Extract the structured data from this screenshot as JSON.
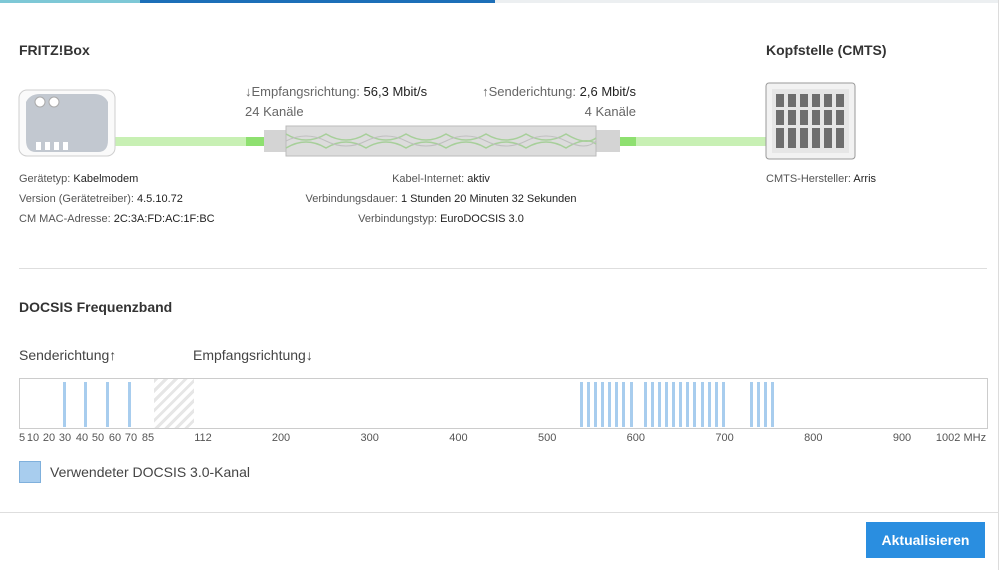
{
  "header": {
    "fritzbox_title": "FRITZ!Box",
    "cmts_title": "Kopfstelle (CMTS)"
  },
  "downstream": {
    "label": "↓Empfangsrichtung:",
    "rate": "56,3 Mbit/s",
    "channels": "24 Kanäle"
  },
  "upstream": {
    "label": "↑Senderichtung:",
    "rate": "2,6 Mbit/s",
    "channels": "4 Kanäle"
  },
  "device": {
    "type_label": "Gerätetyp:",
    "type_value": "Kabelmodem",
    "version_label": "Version (Gerätetreiber):",
    "version_value": "4.5.10.72",
    "mac_label": "CM MAC-Adresse:",
    "mac_value": "2C:3A:FD:AC:1F:BC"
  },
  "connection": {
    "internet_label": "Kabel-Internet:",
    "internet_value": "aktiv",
    "duration_label": "Verbindungsdauer:",
    "duration_value": "1 Stunden 20 Minuten 32 Sekunden",
    "type_label": "Verbindungstyp:",
    "type_value": "EuroDOCSIS 3.0"
  },
  "cmts": {
    "vendor_label": "CMTS-Hersteller:",
    "vendor_value": "Arris"
  },
  "docsis": {
    "title": "DOCSIS Frequenzband",
    "send_label": "Senderichtung↑",
    "receive_label": "Empfangsrichtung↓",
    "upstream_ticks": [
      "5",
      "10",
      "20",
      "30",
      "40",
      "50",
      "60",
      "70",
      "85"
    ],
    "downstream_ticks": [
      "112",
      "200",
      "300",
      "400",
      "500",
      "600",
      "700",
      "800",
      "900",
      "1002 MHz"
    ],
    "upstream_channels_mhz": [
      31,
      44,
      57,
      70
    ],
    "downstream_channels_mhz": [
      538,
      546,
      554,
      562,
      570,
      578,
      586,
      594,
      610,
      618,
      626,
      634,
      642,
      650,
      658,
      666,
      674,
      682,
      690,
      698,
      730,
      738,
      746,
      754
    ],
    "legend": "Verwendeter DOCSIS 3.0-Kanal",
    "channel_color": "#a8cdee"
  },
  "actions": {
    "refresh": "Aktualisieren"
  },
  "colors": {
    "accent": "#2a8ee0",
    "link_green": "#c8f0b4"
  }
}
